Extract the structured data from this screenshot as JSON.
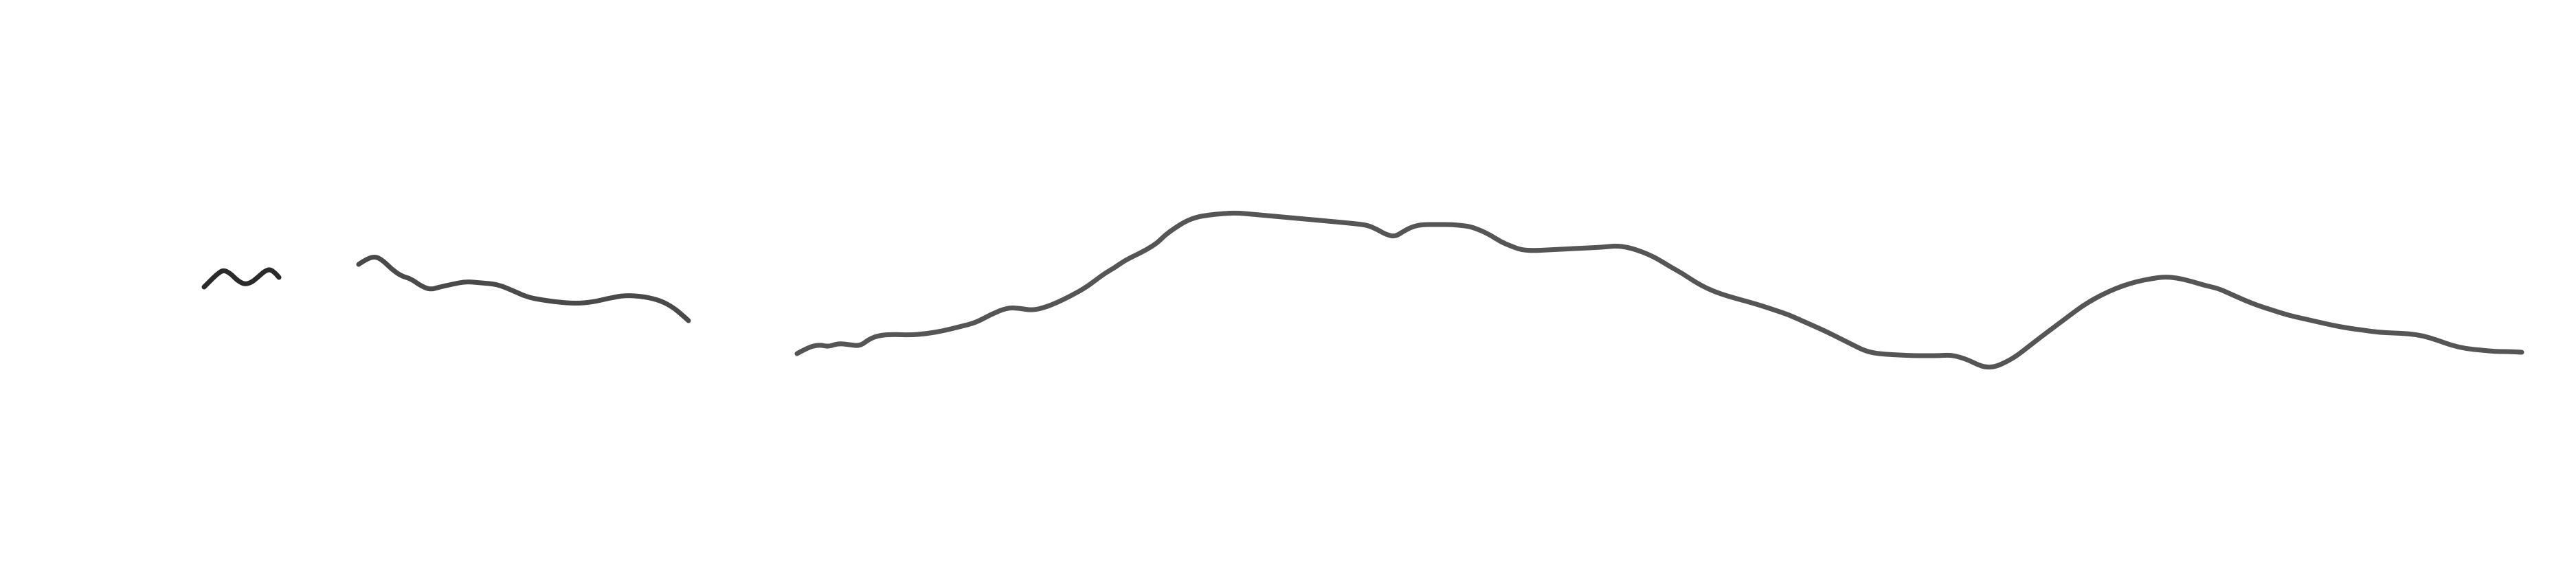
{
  "sketch": {
    "strokes": [
      {
        "name": "small-tilde-stroke",
        "color": "#2a2a2a"
      },
      {
        "name": "short-wave-stroke",
        "color": "#4a4a4a"
      },
      {
        "name": "long-ridge-stroke",
        "color": "#555555"
      }
    ]
  }
}
